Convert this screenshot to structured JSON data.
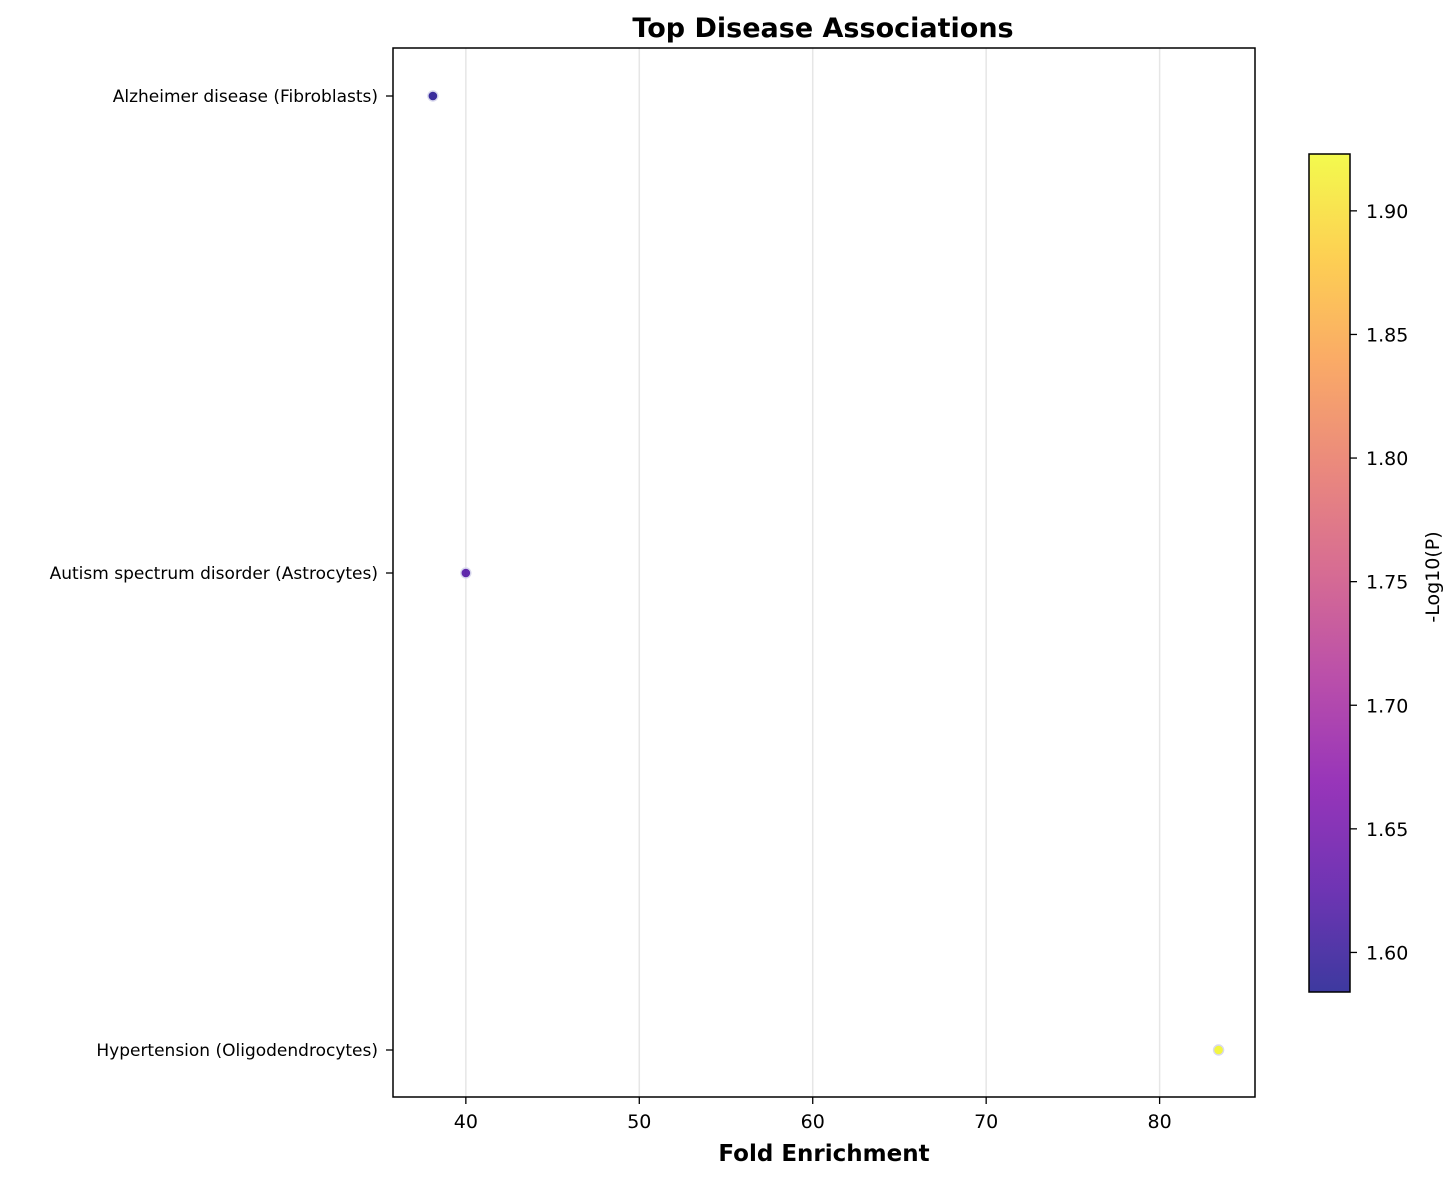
{
  "chart_data": {
    "type": "scatter",
    "title": "Top Disease Associations",
    "xlabel": "Fold Enrichment",
    "ylabel": "",
    "xlim": [
      35.8,
      85.5
    ],
    "x_ticks": [
      40,
      50,
      60,
      70,
      80
    ],
    "grid": "vertical",
    "categories": [
      "Alzheimer disease (Fibroblasts)",
      "Autism spectrum disorder (Astrocytes)",
      "Hypertension (Oligodendrocytes)"
    ],
    "points": [
      {
        "category": "Alzheimer disease (Fibroblasts)",
        "x": 38.1,
        "neg_log10_p": 1.59
      },
      {
        "category": "Autism spectrum disorder (Astrocytes)",
        "x": 40.0,
        "neg_log10_p": 1.62
      },
      {
        "category": "Hypertension (Oligodendrocytes)",
        "x": 83.4,
        "neg_log10_p": 1.92
      }
    ],
    "colorbar": {
      "label": "-Log10(P)",
      "colormap": "plasma",
      "range": [
        1.584,
        1.923
      ],
      "ticks": [
        "1.60",
        "1.65",
        "1.70",
        "1.75",
        "1.80",
        "1.85",
        "1.90"
      ]
    }
  }
}
